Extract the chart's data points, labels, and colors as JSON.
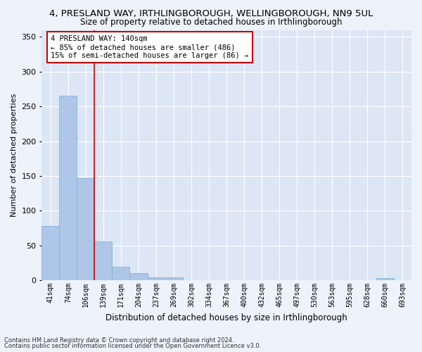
{
  "title": "4, PRESLAND WAY, IRTHLINGBOROUGH, WELLINGBOROUGH, NN9 5UL",
  "subtitle": "Size of property relative to detached houses in Irthlingborough",
  "xlabel": "Distribution of detached houses by size in Irthlingborough",
  "ylabel": "Number of detached properties",
  "categories": [
    "41sqm",
    "74sqm",
    "106sqm",
    "139sqm",
    "171sqm",
    "204sqm",
    "237sqm",
    "269sqm",
    "302sqm",
    "334sqm",
    "367sqm",
    "400sqm",
    "432sqm",
    "465sqm",
    "497sqm",
    "530sqm",
    "563sqm",
    "595sqm",
    "628sqm",
    "660sqm",
    "693sqm"
  ],
  "values": [
    78,
    265,
    147,
    56,
    19,
    10,
    4,
    4,
    0,
    0,
    0,
    0,
    0,
    0,
    0,
    0,
    0,
    0,
    0,
    3,
    0
  ],
  "bar_color": "#aec6e8",
  "bar_edge_color": "#7aafd4",
  "property_line_color": "#cc0000",
  "annotation_title": "4 PRESLAND WAY: 140sqm",
  "annotation_line1": "← 85% of detached houses are smaller (486)",
  "annotation_line2": "15% of semi-detached houses are larger (86) →",
  "annotation_box_facecolor": "#ffffff",
  "annotation_box_edgecolor": "#cc0000",
  "ylim": [
    0,
    360
  ],
  "background_color": "#dce6f5",
  "plot_bg_color": "#dce6f5",
  "fig_bg_color": "#edf2fb",
  "grid_color": "#ffffff",
  "yticks": [
    0,
    50,
    100,
    150,
    200,
    250,
    300,
    350
  ],
  "footer1": "Contains HM Land Registry data © Crown copyright and database right 2024.",
  "footer2": "Contains public sector information licensed under the Open Government Licence v3.0."
}
